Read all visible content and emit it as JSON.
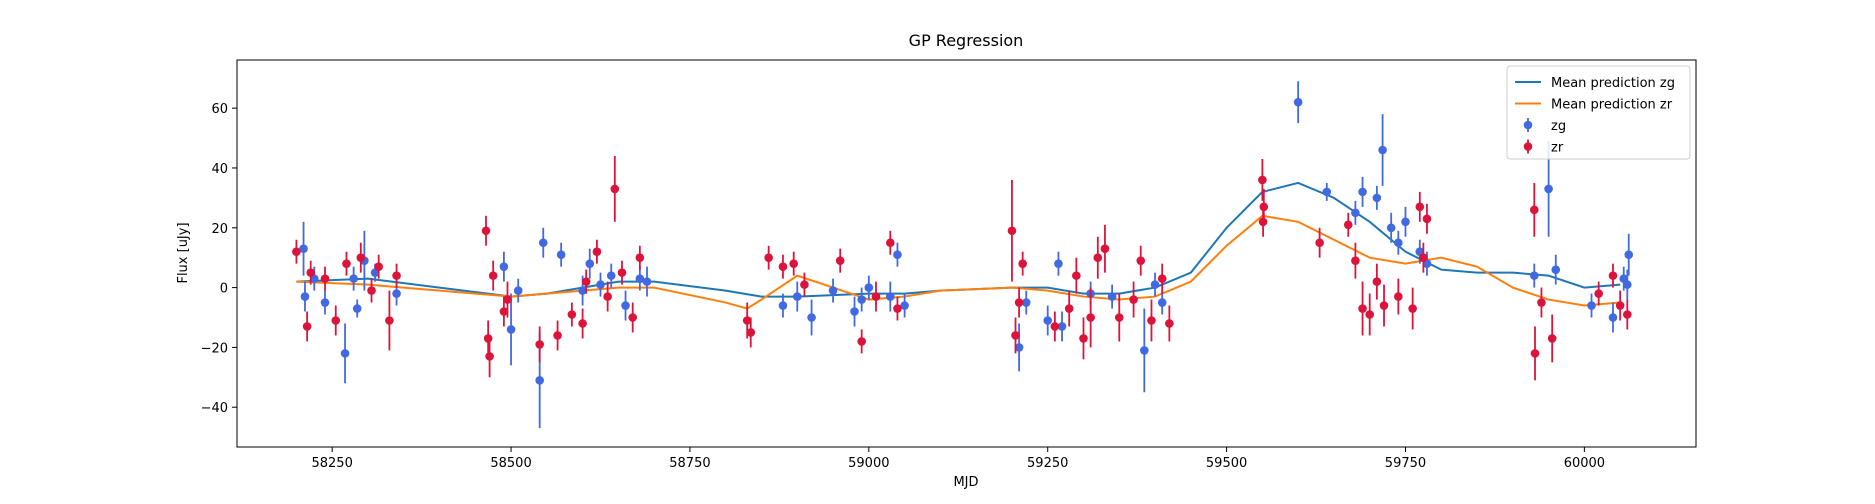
{
  "chart_data": {
    "type": "errorbar",
    "title": "GP Regression",
    "xlabel": "MJD",
    "ylabel": "Flux [uJy]",
    "xlim": [
      58117,
      60156
    ],
    "ylim": [
      -53.3,
      76.1
    ],
    "xticks": [
      58250,
      58500,
      58750,
      59000,
      59250,
      59500,
      59750,
      60000
    ],
    "yticks": [
      {
        "value": -40,
        "label": "−40"
      },
      {
        "value": -20,
        "label": "−20"
      },
      0,
      20,
      40,
      60
    ],
    "legend": "upper right",
    "series": [
      {
        "name": "Mean prediction zg",
        "type": "line",
        "color": "#1f77b4",
        "x": [
          58200,
          58300,
          58400,
          58500,
          58550,
          58600,
          58650,
          58700,
          58800,
          58850,
          58900,
          59000,
          59050,
          59100,
          59200,
          59250,
          59300,
          59350,
          59400,
          59450,
          59500,
          59550,
          59600,
          59650,
          59700,
          59750,
          59800,
          59850,
          59900,
          59950,
          60000,
          60050
        ],
        "values": [
          2,
          3,
          0,
          -3,
          -2,
          0,
          2,
          2,
          -1,
          -3,
          -3,
          -2,
          -2,
          -1,
          0,
          0,
          -2,
          -2,
          0,
          5,
          20,
          32,
          35,
          30,
          22,
          12,
          6,
          5,
          5,
          4,
          0,
          1
        ]
      },
      {
        "name": "Mean prediction zr",
        "type": "line",
        "color": "#ff7f0e",
        "x": [
          58200,
          58300,
          58400,
          58450,
          58500,
          58550,
          58600,
          58650,
          58700,
          58800,
          58830,
          58850,
          58900,
          58950,
          59000,
          59050,
          59100,
          59200,
          59250,
          59300,
          59350,
          59400,
          59450,
          59500,
          59550,
          59600,
          59650,
          59700,
          59750,
          59800,
          59850,
          59900,
          59950,
          60000,
          60050
        ],
        "values": [
          2,
          1,
          -1,
          -2,
          -3,
          -2,
          -1,
          0,
          0,
          -5,
          -7,
          -4,
          4,
          0,
          -4,
          -3,
          -1,
          0,
          -1,
          -3,
          -4,
          -3,
          2,
          14,
          24,
          22,
          16,
          10,
          8,
          10,
          7,
          0,
          -4,
          -6,
          -5
        ]
      },
      {
        "name": "zg",
        "type": "errorbar",
        "color": "#4169e1",
        "x": [
          58210,
          58212,
          58225,
          58240,
          58268,
          58280,
          58285,
          58295,
          58310,
          58340,
          58490,
          58500,
          58510,
          58545,
          58540,
          58570,
          58600,
          58610,
          58625,
          58640,
          58660,
          58680,
          58690,
          58880,
          58900,
          58920,
          58950,
          58980,
          58990,
          59000,
          59030,
          59040,
          59050,
          59210,
          59220,
          59250,
          59265,
          59270,
          59310,
          59340,
          59385,
          59400,
          59410,
          59600,
          59640,
          59680,
          59690,
          59710,
          59718,
          59730,
          59740,
          59750,
          59770,
          59780,
          59950,
          59960,
          59930,
          60010,
          60040,
          60055,
          60062,
          60060
        ],
        "values": [
          13,
          -3,
          3,
          -5,
          -22,
          3,
          -7,
          9,
          5,
          -2,
          7,
          -14,
          -1,
          15,
          -31,
          11,
          -1,
          8,
          1,
          4,
          -6,
          3,
          2,
          -6,
          -3,
          -10,
          -1,
          -8,
          -4,
          0,
          -3,
          11,
          -6,
          -20,
          -5,
          -11,
          8,
          -13,
          -2,
          -3,
          -21,
          1,
          -5,
          62,
          32,
          25,
          32,
          30,
          46,
          20,
          15,
          22,
          12,
          8,
          33,
          6,
          4,
          -6,
          -10,
          3,
          11,
          1
        ],
        "errors": [
          9,
          5,
          4,
          4,
          10,
          4,
          3,
          10,
          3,
          4,
          5,
          12,
          4,
          5,
          16,
          4,
          5,
          5,
          4,
          4,
          5,
          4,
          5,
          4,
          5,
          6,
          4,
          5,
          4,
          4,
          5,
          4,
          4,
          8,
          4,
          5,
          4,
          5,
          4,
          4,
          14,
          4,
          4,
          7,
          3,
          4,
          5,
          4,
          12,
          5,
          4,
          5,
          4,
          4,
          16,
          5,
          4,
          4,
          5,
          4,
          7,
          5
        ]
      },
      {
        "name": "zr",
        "type": "errorbar",
        "color": "#dc143c",
        "x": [
          58200,
          58215,
          58220,
          58240,
          58255,
          58270,
          58290,
          58305,
          58315,
          58330,
          58340,
          58465,
          58470,
          58468,
          58475,
          58490,
          58495,
          58540,
          58565,
          58585,
          58600,
          58605,
          58620,
          58635,
          58645,
          58655,
          58670,
          58680,
          58830,
          58835,
          58860,
          58880,
          58895,
          58910,
          58960,
          58990,
          59010,
          59030,
          59040,
          59200,
          59205,
          59210,
          59215,
          59260,
          59280,
          59290,
          59300,
          59310,
          59320,
          59330,
          59350,
          59370,
          59380,
          59395,
          59410,
          59420,
          59550,
          59552,
          59551,
          59630,
          59670,
          59680,
          59690,
          59700,
          59710,
          59720,
          59740,
          59760,
          59770,
          59775,
          59780,
          59930,
          59931,
          59940,
          59955,
          60020,
          60040,
          60050,
          60060
        ],
        "values": [
          12,
          -13,
          5,
          3,
          -11,
          8,
          10,
          -1,
          7,
          -11,
          4,
          19,
          -23,
          -17,
          4,
          -8,
          -4,
          -19,
          -16,
          -9,
          -12,
          2,
          12,
          -3,
          33,
          5,
          -10,
          10,
          -11,
          -15,
          10,
          7,
          8,
          1,
          9,
          -18,
          -3,
          15,
          -7,
          19,
          -16,
          -5,
          8,
          -13,
          -7,
          4,
          -17,
          -10,
          10,
          13,
          -10,
          -4,
          9,
          -11,
          3,
          -12,
          36,
          27,
          22,
          15,
          21,
          9,
          -7,
          -9,
          2,
          -6,
          -3,
          -7,
          27,
          10,
          23,
          26,
          -22,
          -5,
          -17,
          -2,
          4,
          -6,
          -9
        ],
        "errors": [
          4,
          5,
          4,
          4,
          5,
          4,
          5,
          4,
          4,
          10,
          4,
          5,
          7,
          6,
          5,
          5,
          6,
          6,
          5,
          4,
          5,
          4,
          4,
          5,
          11,
          4,
          5,
          4,
          6,
          5,
          4,
          4,
          4,
          4,
          4,
          4,
          5,
          4,
          4,
          17,
          6,
          5,
          4,
          5,
          6,
          6,
          7,
          10,
          7,
          8,
          8,
          6,
          5,
          7,
          5,
          6,
          7,
          6,
          5,
          5,
          4,
          6,
          9,
          7,
          6,
          7,
          6,
          7,
          5,
          5,
          5,
          9,
          9,
          5,
          8,
          4,
          4,
          5,
          5
        ]
      }
    ]
  }
}
